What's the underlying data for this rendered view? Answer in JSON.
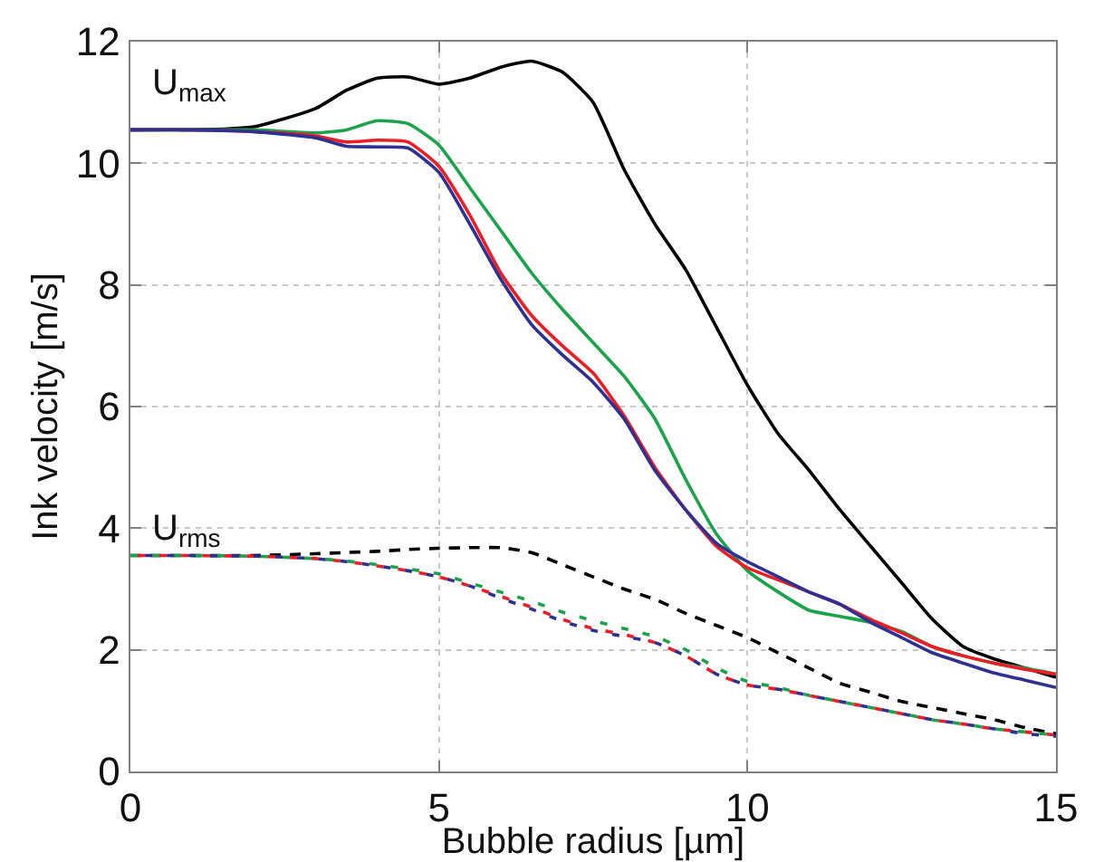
{
  "chart_data": {
    "type": "line",
    "xlabel": "Bubble radius [µm]",
    "ylabel": "Ink velocity [m/s]",
    "x": [
      0,
      1,
      2,
      3,
      3.5,
      4,
      4.5,
      5,
      5.5,
      6,
      6.5,
      7,
      7.5,
      8,
      8.5,
      9,
      9.5,
      10,
      10.5,
      11,
      11.5,
      12,
      12.5,
      13,
      13.5,
      14,
      14.5,
      15
    ],
    "series": [
      {
        "color": "#000000",
        "line_style": "solid",
        "values": [
          10.55,
          10.55,
          10.6,
          10.9,
          11.2,
          11.4,
          11.42,
          11.3,
          11.4,
          11.58,
          11.68,
          11.5,
          11.0,
          9.9,
          9.0,
          8.25,
          7.3,
          6.35,
          5.55,
          4.95,
          4.3,
          3.7,
          3.1,
          2.5,
          2.05,
          1.85,
          1.7,
          1.55
        ]
      },
      {
        "color": "#1aa34a",
        "line_style": "solid",
        "values": [
          10.55,
          10.55,
          10.55,
          10.5,
          10.55,
          10.7,
          10.65,
          10.3,
          9.6,
          8.9,
          8.2,
          7.6,
          7.05,
          6.5,
          5.8,
          4.8,
          3.9,
          3.3,
          2.95,
          2.65,
          2.55,
          2.45,
          2.3,
          2.05,
          1.9,
          1.78,
          1.7,
          1.6
        ]
      },
      {
        "color": "#ee1c24",
        "line_style": "solid",
        "values": [
          10.55,
          10.55,
          10.52,
          10.45,
          10.35,
          10.38,
          10.35,
          9.95,
          9.15,
          8.2,
          7.5,
          7.0,
          6.55,
          5.85,
          5.0,
          4.3,
          3.7,
          3.35,
          3.15,
          2.95,
          2.75,
          2.5,
          2.28,
          2.05,
          1.9,
          1.78,
          1.68,
          1.6
        ]
      },
      {
        "color": "#2e3192",
        "line_style": "solid",
        "values": [
          10.55,
          10.55,
          10.52,
          10.42,
          10.28,
          10.27,
          10.25,
          9.85,
          9.0,
          8.1,
          7.35,
          6.85,
          6.4,
          5.8,
          4.95,
          4.3,
          3.75,
          3.45,
          3.2,
          2.95,
          2.75,
          2.45,
          2.2,
          1.95,
          1.78,
          1.62,
          1.5,
          1.38
        ]
      },
      {
        "color": "#000000",
        "line_style": "dashed",
        "values": [
          3.55,
          3.55,
          3.55,
          3.58,
          3.6,
          3.62,
          3.65,
          3.67,
          3.68,
          3.68,
          3.6,
          3.4,
          3.2,
          3.0,
          2.83,
          2.6,
          2.4,
          2.2,
          1.95,
          1.7,
          1.45,
          1.3,
          1.15,
          1.05,
          0.95,
          0.85,
          0.72,
          0.62
        ]
      },
      {
        "color": "#1aa34a",
        "line_style": "dashed",
        "values": [
          3.55,
          3.55,
          3.54,
          3.5,
          3.46,
          3.4,
          3.33,
          3.25,
          3.1,
          2.95,
          2.8,
          2.62,
          2.48,
          2.35,
          2.22,
          2.0,
          1.7,
          1.48,
          1.38,
          1.25,
          1.15,
          1.05,
          0.95,
          0.85,
          0.78,
          0.7,
          0.65,
          0.6
        ]
      },
      {
        "color": "#ee1c24",
        "line_style": "dashed",
        "values": [
          3.55,
          3.55,
          3.54,
          3.5,
          3.45,
          3.38,
          3.3,
          3.2,
          3.05,
          2.88,
          2.7,
          2.5,
          2.35,
          2.25,
          2.12,
          1.9,
          1.6,
          1.42,
          1.35,
          1.25,
          1.15,
          1.05,
          0.95,
          0.85,
          0.78,
          0.7,
          0.65,
          0.6
        ]
      },
      {
        "color": "#2e3192",
        "line_style": "dashed",
        "values": [
          3.55,
          3.55,
          3.54,
          3.5,
          3.45,
          3.38,
          3.3,
          3.2,
          3.05,
          2.85,
          2.67,
          2.47,
          2.32,
          2.22,
          2.12,
          1.9,
          1.6,
          1.42,
          1.35,
          1.25,
          1.15,
          1.05,
          0.95,
          0.85,
          0.78,
          0.7,
          0.62,
          0.58
        ]
      }
    ],
    "annotations": [
      "U$_{max}$",
      "U$_{rms}$"
    ],
    "xlim": [
      0,
      15
    ],
    "xticks": [
      0,
      5,
      10,
      15
    ],
    "ylim": [
      0,
      12
    ],
    "yticks": [
      0,
      2,
      4,
      6,
      8,
      10,
      12
    ],
    "grid": true,
    "marker": "none"
  }
}
